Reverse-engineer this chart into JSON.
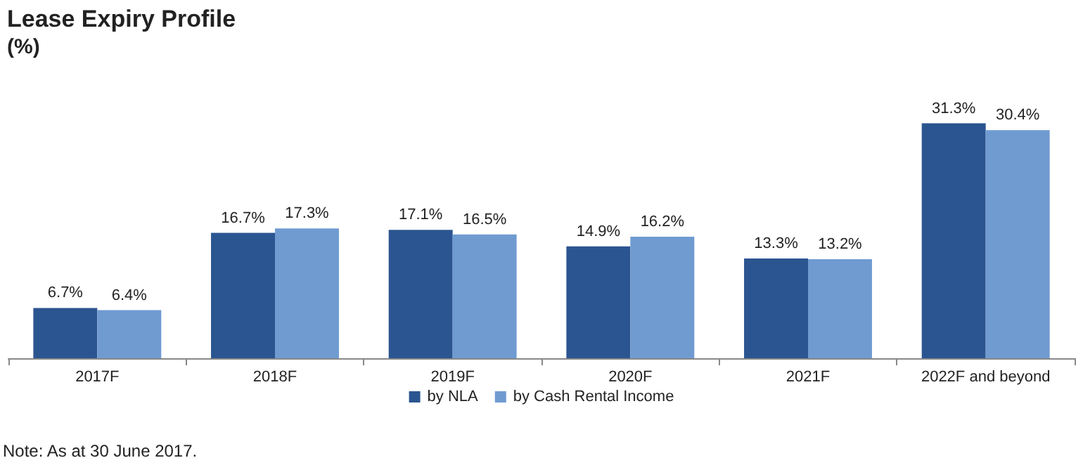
{
  "chart_data": {
    "type": "bar",
    "title": "Lease Expiry Profile",
    "subtitle": "(%)",
    "categories": [
      "2017F",
      "2018F",
      "2019F",
      "2020F",
      "2021F",
      "2022F and beyond"
    ],
    "series": [
      {
        "name": "by NLA",
        "color": "#2b5590",
        "values": [
          6.7,
          16.7,
          17.1,
          14.9,
          13.3,
          31.3
        ],
        "value_labels": [
          "6.7%",
          "16.7%",
          "17.1%",
          "14.9%",
          "13.3%",
          "31.3%"
        ]
      },
      {
        "name": "by Cash Rental Income",
        "color": "#6f9bd1",
        "values": [
          6.4,
          17.3,
          16.5,
          16.2,
          13.2,
          30.4
        ],
        "value_labels": [
          "6.4%",
          "17.3%",
          "16.5%",
          "16.2%",
          "13.2%",
          "30.4%"
        ]
      }
    ],
    "legend": "bottom",
    "annotations": [
      "Note: As at 30 June 2017."
    ]
  }
}
